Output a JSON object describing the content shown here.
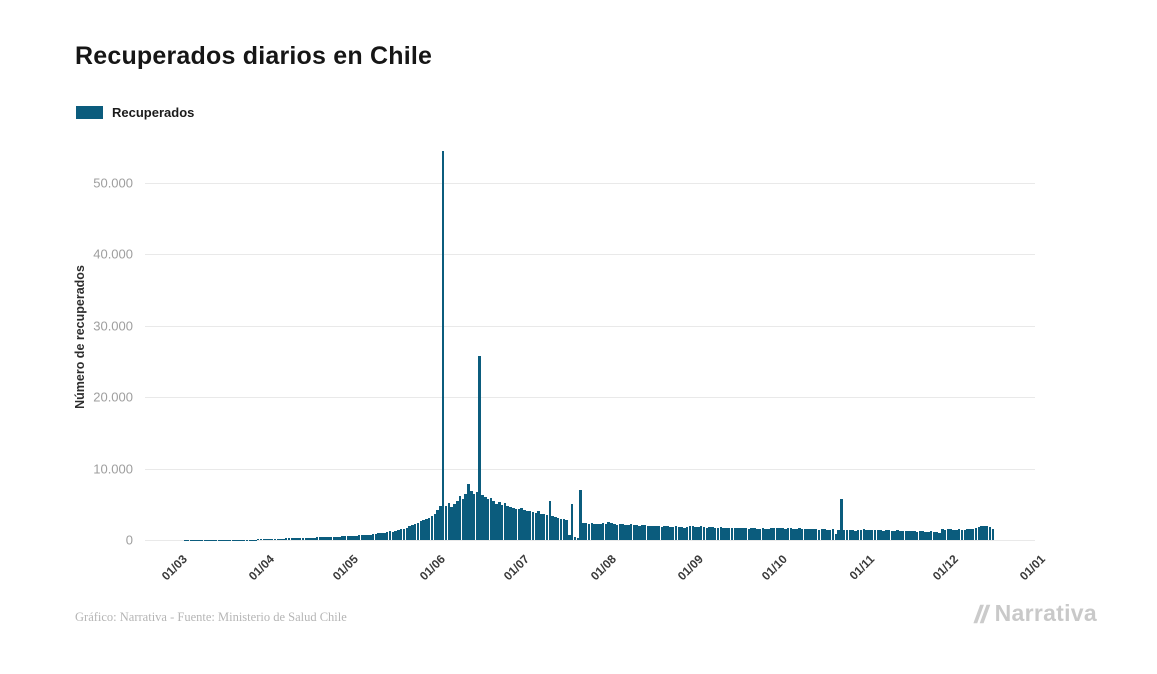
{
  "header": {
    "title": "Recuperados diarios en Chile"
  },
  "legend": {
    "label": "Recuperados"
  },
  "footer": {
    "source": "Gráfico: Narrativa - Fuente: Ministerio de Salud Chile"
  },
  "branding": {
    "logo_text": "Narrativa",
    "logo_color": "#c9c9c9"
  },
  "chart_data": {
    "type": "bar",
    "title": "Recuperados diarios en Chile",
    "xlabel": "",
    "ylabel": "Número de recuperados",
    "legend": [
      "Recuperados"
    ],
    "legend_position": "top-left",
    "grid": "horizontal",
    "bar_color": "#0b5c7d",
    "ylim": [
      0,
      56000
    ],
    "y_ticks": [
      0,
      10000,
      20000,
      30000,
      40000,
      50000
    ],
    "y_tick_labels": [
      "0",
      "10.000",
      "20.000",
      "30.000",
      "40.000",
      "50.000"
    ],
    "x_tick_labels": [
      "01/03",
      "01/04",
      "01/05",
      "01/06",
      "01/07",
      "01/08",
      "01/09",
      "01/10",
      "01/11",
      "01/12",
      "01/01"
    ],
    "x_tick_day_index": [
      0,
      31,
      61,
      92,
      122,
      153,
      184,
      214,
      245,
      275,
      306
    ],
    "start_date": "01/03",
    "notable_points": [
      {
        "approx_date": "06/06",
        "value": 54500
      },
      {
        "approx_date": "19/06",
        "value": 25700
      },
      {
        "approx_date": "25/07",
        "value": 7000
      },
      {
        "approx_date": "26/10",
        "value": 5700
      }
    ],
    "values": [
      0,
      0,
      0,
      0,
      0,
      1,
      1,
      2,
      2,
      3,
      4,
      5,
      6,
      8,
      10,
      12,
      14,
      16,
      18,
      20,
      24,
      28,
      32,
      36,
      40,
      45,
      50,
      55,
      60,
      65,
      70,
      80,
      95,
      110,
      120,
      135,
      150,
      160,
      175,
      190,
      200,
      215,
      230,
      240,
      255,
      270,
      280,
      295,
      310,
      320,
      335,
      350,
      360,
      375,
      390,
      400,
      420,
      440,
      455,
      470,
      490,
      510,
      540,
      570,
      600,
      580,
      620,
      660,
      700,
      680,
      730,
      770,
      820,
      870,
      920,
      980,
      1050,
      1120,
      1200,
      1150,
      1300,
      1400,
      1500,
      1600,
      1750,
      1900,
      2050,
      2200,
      2400,
      2600,
      2800,
      3000,
      3100,
      3300,
      3600,
      4200,
      4700,
      54500,
      4800,
      5200,
      4600,
      5000,
      5400,
      6200,
      5800,
      6500,
      7800,
      6900,
      6400,
      6700,
      25700,
      6300,
      6000,
      5700,
      5900,
      5400,
      5100,
      5300,
      4900,
      5200,
      4800,
      4600,
      4500,
      4400,
      4300,
      4500,
      4200,
      4000,
      4100,
      3900,
      3800,
      4000,
      3700,
      3600,
      3500,
      5500,
      3300,
      3200,
      3100,
      3000,
      2900,
      2800,
      700,
      5000,
      400,
      300,
      7000,
      2400,
      2350,
      2300,
      2350,
      2300,
      2250,
      2300,
      2400,
      2250,
      2500,
      2350,
      2250,
      2150,
      2300,
      2200,
      2100,
      2050,
      2200,
      2100,
      2050,
      1950,
      2100,
      2050,
      1950,
      1900,
      2000,
      1950,
      1900,
      1850,
      1950,
      1900,
      1850,
      1800,
      1900,
      1850,
      1800,
      1750,
      1850,
      1950,
      1900,
      1850,
      1800,
      1900,
      1850,
      1750,
      1800,
      1850,
      1750,
      1700,
      1800,
      1750,
      1700,
      1650,
      1750,
      1700,
      1650,
      1750,
      1700,
      1650,
      1600,
      1700,
      1650,
      1600,
      1550,
      1650,
      1600,
      1550,
      1700,
      1650,
      1750,
      1700,
      1650,
      1600,
      1700,
      1650,
      1600,
      1550,
      1650,
      1600,
      1550,
      1500,
      1600,
      1550,
      1500,
      1450,
      1550,
      1500,
      1450,
      1400,
      1500,
      900,
      1450,
      5700,
      1400,
      1350,
      1400,
      1350,
      1300,
      1450,
      1400,
      1500,
      1450,
      1400,
      1350,
      1450,
      1400,
      1350,
      1300,
      1400,
      1350,
      1300,
      1250,
      1350,
      1300,
      1250,
      1200,
      1300,
      1250,
      1200,
      1150,
      1250,
      1200,
      1150,
      1100,
      1200,
      1150,
      1100,
      1050,
      1500,
      1450,
      1550,
      1500,
      1450,
      1400,
      1500,
      1450,
      1400,
      1500,
      1550,
      1600,
      1700,
      1800,
      1900,
      2000,
      1900,
      1800,
      1600
    ]
  }
}
